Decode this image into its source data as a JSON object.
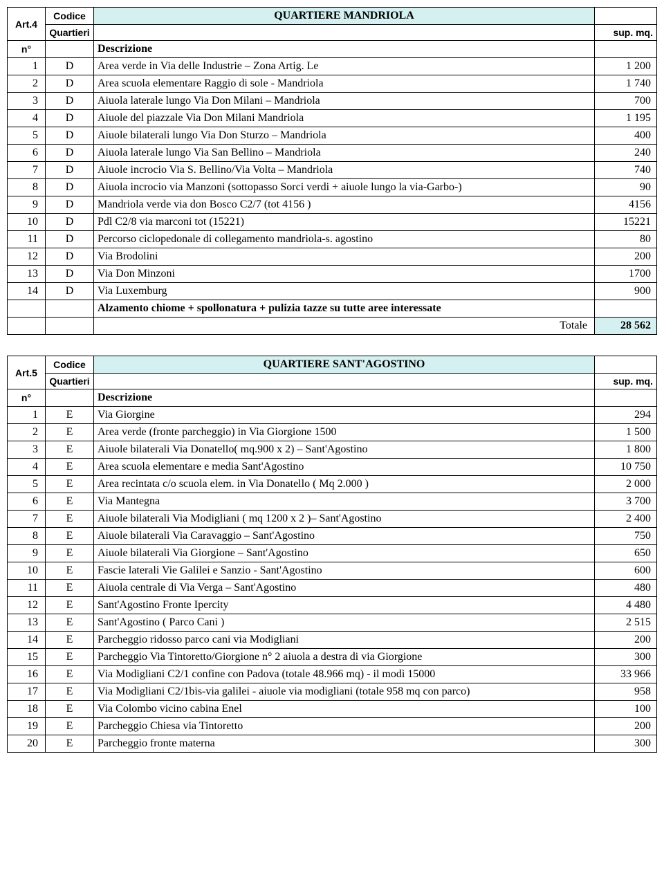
{
  "colors": {
    "header_bg": "#d4f0f0",
    "border": "#000000",
    "bg": "#ffffff"
  },
  "table1": {
    "art": "Art.4",
    "codice": "Codice",
    "quartieri": "Quartieri",
    "title": "QUARTIERE MANDRIOLA",
    "supmq": "sup. mq.",
    "n": "n°",
    "desc": "Descrizione",
    "rows": [
      {
        "n": "1",
        "c": "D",
        "d": "Area verde in Via delle Industrie – Zona  Artig. Le",
        "v": "1 200"
      },
      {
        "n": "2",
        "c": "D",
        "d": "Area scuola elementare Raggio di sole - Mandriola",
        "v": "1 740"
      },
      {
        "n": "3",
        "c": "D",
        "d": "Aiuola laterale lungo Via Don Milani – Mandriola",
        "v": "700"
      },
      {
        "n": "4",
        "c": "D",
        "d": "Aiuole del piazzale Via Don Milani Mandriola",
        "v": "1 195"
      },
      {
        "n": "5",
        "c": "D",
        "d": "Aiuole bilaterali lungo Via Don Sturzo – Mandriola",
        "v": "400"
      },
      {
        "n": "6",
        "c": "D",
        "d": "Aiuola laterale lungo Via San Bellino – Mandriola",
        "v": "240"
      },
      {
        "n": "7",
        "c": "D",
        "d": "Aiuole incrocio Via S. Bellino/Via Volta – Mandriola",
        "v": "740"
      },
      {
        "n": "8",
        "c": "D",
        "d": "Aiuola incrocio via Manzoni (sottopasso Sorci verdi + aiuole lungo la via-Garbo-)",
        "v": "90"
      },
      {
        "n": "9",
        "c": "D",
        "d": "Mandriola verde via don Bosco C2/7 (tot 4156 )",
        "v": "4156"
      },
      {
        "n": "10",
        "c": "D",
        "d": "Pdl C2/8 via marconi tot  (15221)",
        "v": "15221"
      },
      {
        "n": "11",
        "c": "D",
        "d": "Percorso ciclopedonale di collegamento mandriola-s. agostino",
        "v": "80"
      },
      {
        "n": "12",
        "c": "D",
        "d": "Via Brodolini",
        "v": "200"
      },
      {
        "n": "13",
        "c": "D",
        "d": "Via Don Minzoni",
        "v": "1700"
      },
      {
        "n": "14",
        "c": "D",
        "d": "Via Luxemburg",
        "v": "900"
      }
    ],
    "bold_note": "Alzamento chiome + spollonatura + pulizia tazze su tutte aree interessate",
    "totale_label": "Totale",
    "totale_val": "28 562"
  },
  "table2": {
    "art": "Art.5",
    "codice": "Codice",
    "quartieri": "Quartieri",
    "title": "QUARTIERE SANT'AGOSTINO",
    "supmq": "sup. mq.",
    "n": "n°",
    "desc": "Descrizione",
    "rows": [
      {
        "n": "1",
        "c": "E",
        "d": "Via Giorgine",
        "v": "294"
      },
      {
        "n": "2",
        "c": "E",
        "d": "Area verde (fronte parcheggio) in Via Giorgione 1500",
        "v": "1 500"
      },
      {
        "n": "3",
        "c": "E",
        "d": "Aiuole bilaterali Via Donatello( mq.900 x 2) – Sant'Agostino",
        "v": "1 800"
      },
      {
        "n": "4",
        "c": "E",
        "d": "Area scuola elementare e media Sant'Agostino",
        "v": "10 750"
      },
      {
        "n": "5",
        "c": "E",
        "d": "Area recintata  c/o scuola elem. in Via Donatello ( Mq 2.000 )",
        "v": "2 000"
      },
      {
        "n": "6",
        "c": "E",
        "d": "Via Mantegna",
        "v": "3 700"
      },
      {
        "n": "7",
        "c": "E",
        "d": "Aiuole bilaterali Via Modigliani ( mq 1200 x 2 )– Sant'Agostino",
        "v": "2 400"
      },
      {
        "n": "8",
        "c": "E",
        "d": "Aiuole bilaterali Via Caravaggio – Sant'Agostino",
        "v": "750"
      },
      {
        "n": "9",
        "c": "E",
        "d": "Aiuole bilaterali Via Giorgione – Sant'Agostino",
        "v": "650"
      },
      {
        "n": "10",
        "c": "E",
        "d": "Fascie laterali Vie Galilei e  Sanzio - Sant'Agostino",
        "v": "600"
      },
      {
        "n": "11",
        "c": "E",
        "d": "Aiuola centrale di Via Verga – Sant'Agostino",
        "v": "480"
      },
      {
        "n": "12",
        "c": "E",
        "d": "Sant'Agostino Fronte Ipercity",
        "v": "4 480"
      },
      {
        "n": "13",
        "c": "E",
        "d": "Sant'Agostino ( Parco Cani )",
        "v": "2 515"
      },
      {
        "n": "14",
        "c": "E",
        "d": "Parcheggio ridosso parco cani via Modigliani",
        "v": "200"
      },
      {
        "n": "15",
        "c": "E",
        "d": "Parcheggio Via Tintoretto/Giorgione n° 2 aiuola a destra di via Giorgione",
        "v": "300"
      },
      {
        "n": "16",
        "c": "E",
        "d": "Via Modigliani C2/1 confine con Padova  (totale 48.966 mq) - il modì 15000",
        "v": "33 966"
      },
      {
        "n": "17",
        "c": "E",
        "d": "Via Modigliani C2/1bis-via galilei  - aiuole via modigliani (totale 958 mq con parco)",
        "v": "958"
      },
      {
        "n": "18",
        "c": "E",
        "d": "Via Colombo vicino cabina Enel",
        "v": "100"
      },
      {
        "n": "19",
        "c": "E",
        "d": "Parcheggio Chiesa via Tintoretto",
        "v": "200"
      },
      {
        "n": "20",
        "c": "E",
        "d": "Parcheggio fronte materna",
        "v": "300"
      }
    ]
  }
}
